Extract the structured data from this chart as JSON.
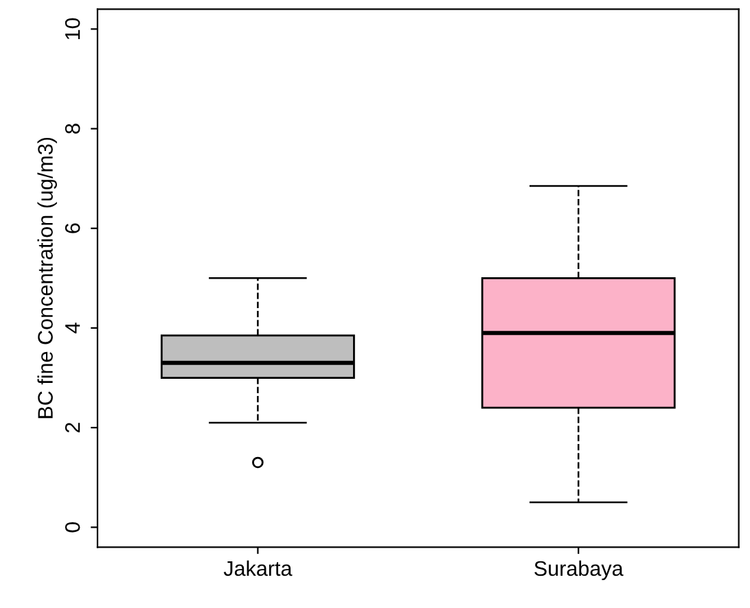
{
  "chart_data": {
    "type": "box",
    "ylabel": "BC fine Concentration (ug/m3)",
    "categories": [
      "Jakarta",
      "Surabaya"
    ],
    "boxes": [
      {
        "low": 2.1,
        "q1": 3.0,
        "median": 3.3,
        "q3": 3.85,
        "high": 5.0,
        "outliers": [
          1.3
        ]
      },
      {
        "low": 0.5,
        "q1": 2.4,
        "median": 3.9,
        "q3": 5.0,
        "high": 6.85
      }
    ],
    "colors": [
      "#bebebe",
      "#fcb2c8"
    ],
    "ylim": [
      -0.4,
      10.4
    ],
    "yticks": [
      0,
      2,
      4,
      6,
      8,
      10
    ],
    "grid": false
  }
}
